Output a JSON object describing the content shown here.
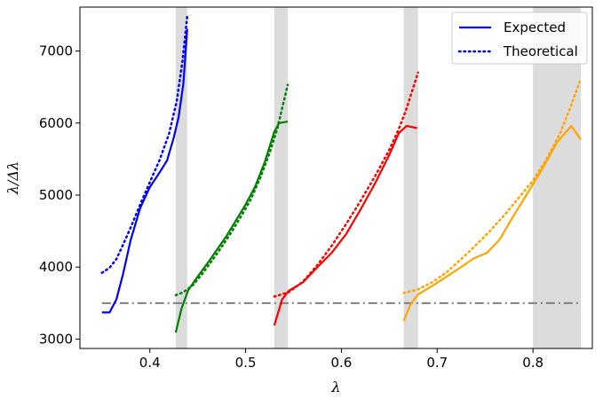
{
  "chart_data": {
    "type": "line",
    "xlabel": "λ",
    "ylabel": "λ/Δλ",
    "xlim": [
      0.327,
      0.862
    ],
    "ylim": [
      2870,
      7610
    ],
    "xticks": [
      0.4,
      0.5,
      0.6,
      0.7,
      0.8
    ],
    "xtick_labels": [
      "0.4",
      "0.5",
      "0.6",
      "0.7",
      "0.8"
    ],
    "yticks": [
      3000,
      4000,
      5000,
      6000,
      7000
    ],
    "ytick_labels": [
      "3000",
      "4000",
      "5000",
      "6000",
      "7000"
    ],
    "grid": false,
    "legend_position": "top-right",
    "legend": [
      {
        "label": "Expected",
        "style": "solid"
      },
      {
        "label": "Theoretical",
        "style": "dotted"
      }
    ],
    "shaded_bands": [
      {
        "x0": 0.427,
        "x1": 0.439
      },
      {
        "x0": 0.53,
        "x1": 0.544
      },
      {
        "x0": 0.665,
        "x1": 0.68
      },
      {
        "x0": 0.8,
        "x1": 0.85
      }
    ],
    "reference_line": {
      "y": 3500,
      "x0": 0.35,
      "x1": 0.85,
      "style": "dashdot",
      "color": "#7f7f7f"
    },
    "series": [
      {
        "group": "blue",
        "color": "#0000ff",
        "style": "solid",
        "points": [
          [
            0.35,
            3370
          ],
          [
            0.358,
            3370
          ],
          [
            0.365,
            3550
          ],
          [
            0.372,
            3900
          ],
          [
            0.38,
            4380
          ],
          [
            0.39,
            4820
          ],
          [
            0.4,
            5110
          ],
          [
            0.41,
            5310
          ],
          [
            0.418,
            5480
          ],
          [
            0.425,
            5800
          ],
          [
            0.43,
            6080
          ],
          [
            0.435,
            6550
          ],
          [
            0.439,
            7310
          ]
        ]
      },
      {
        "group": "blue",
        "color": "#0000ff",
        "style": "dotted",
        "points": [
          [
            0.35,
            3920
          ],
          [
            0.358,
            3990
          ],
          [
            0.365,
            4110
          ],
          [
            0.372,
            4310
          ],
          [
            0.38,
            4550
          ],
          [
            0.39,
            4870
          ],
          [
            0.4,
            5180
          ],
          [
            0.41,
            5480
          ],
          [
            0.42,
            5850
          ],
          [
            0.428,
            6300
          ],
          [
            0.434,
            6850
          ],
          [
            0.439,
            7480
          ]
        ]
      },
      {
        "group": "green",
        "color": "#008000",
        "style": "solid",
        "points": [
          [
            0.427,
            3090
          ],
          [
            0.433,
            3420
          ],
          [
            0.44,
            3680
          ],
          [
            0.45,
            3870
          ],
          [
            0.46,
            4050
          ],
          [
            0.47,
            4240
          ],
          [
            0.48,
            4430
          ],
          [
            0.49,
            4650
          ],
          [
            0.5,
            4870
          ],
          [
            0.51,
            5120
          ],
          [
            0.52,
            5460
          ],
          [
            0.53,
            5880
          ],
          [
            0.535,
            6000
          ],
          [
            0.544,
            6020
          ]
        ]
      },
      {
        "group": "green",
        "color": "#008000",
        "style": "dotted",
        "points": [
          [
            0.427,
            3610
          ],
          [
            0.435,
            3650
          ],
          [
            0.445,
            3750
          ],
          [
            0.455,
            3910
          ],
          [
            0.465,
            4090
          ],
          [
            0.475,
            4280
          ],
          [
            0.485,
            4480
          ],
          [
            0.495,
            4700
          ],
          [
            0.505,
            4930
          ],
          [
            0.515,
            5230
          ],
          [
            0.525,
            5580
          ],
          [
            0.533,
            5920
          ],
          [
            0.538,
            6200
          ],
          [
            0.544,
            6530
          ]
        ]
      },
      {
        "group": "red",
        "color": "#ff0000",
        "style": "solid",
        "points": [
          [
            0.53,
            3190
          ],
          [
            0.538,
            3550
          ],
          [
            0.545,
            3670
          ],
          [
            0.56,
            3790
          ],
          [
            0.575,
            4000
          ],
          [
            0.59,
            4200
          ],
          [
            0.605,
            4460
          ],
          [
            0.62,
            4800
          ],
          [
            0.635,
            5160
          ],
          [
            0.65,
            5560
          ],
          [
            0.66,
            5860
          ],
          [
            0.668,
            5960
          ],
          [
            0.679,
            5930
          ]
        ]
      },
      {
        "group": "red",
        "color": "#ff0000",
        "style": "dotted",
        "points": [
          [
            0.53,
            3590
          ],
          [
            0.545,
            3650
          ],
          [
            0.56,
            3800
          ],
          [
            0.575,
            4030
          ],
          [
            0.59,
            4300
          ],
          [
            0.605,
            4600
          ],
          [
            0.62,
            4920
          ],
          [
            0.635,
            5260
          ],
          [
            0.65,
            5630
          ],
          [
            0.66,
            5920
          ],
          [
            0.668,
            6200
          ],
          [
            0.674,
            6450
          ],
          [
            0.68,
            6700
          ]
        ]
      },
      {
        "group": "orange",
        "color": "#ffa500",
        "style": "solid",
        "points": [
          [
            0.665,
            3250
          ],
          [
            0.672,
            3480
          ],
          [
            0.68,
            3620
          ],
          [
            0.695,
            3740
          ],
          [
            0.71,
            3870
          ],
          [
            0.725,
            4000
          ],
          [
            0.738,
            4120
          ],
          [
            0.752,
            4200
          ],
          [
            0.765,
            4380
          ],
          [
            0.78,
            4720
          ],
          [
            0.795,
            5040
          ],
          [
            0.81,
            5370
          ],
          [
            0.825,
            5730
          ],
          [
            0.84,
            5960
          ],
          [
            0.85,
            5770
          ]
        ]
      },
      {
        "group": "orange",
        "color": "#ffa500",
        "style": "dotted",
        "points": [
          [
            0.665,
            3640
          ],
          [
            0.68,
            3690
          ],
          [
            0.695,
            3790
          ],
          [
            0.71,
            3930
          ],
          [
            0.725,
            4110
          ],
          [
            0.74,
            4300
          ],
          [
            0.755,
            4500
          ],
          [
            0.77,
            4720
          ],
          [
            0.785,
            4960
          ],
          [
            0.8,
            5200
          ],
          [
            0.815,
            5520
          ],
          [
            0.828,
            5850
          ],
          [
            0.84,
            6250
          ],
          [
            0.85,
            6620
          ]
        ]
      }
    ]
  }
}
